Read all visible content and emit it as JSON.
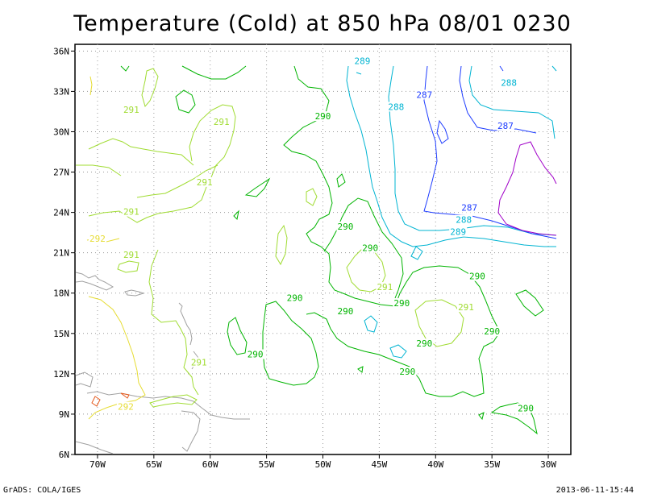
{
  "title": "Temperature (Cold) at 850 hPa 08/01 0230",
  "footer": {
    "left": "GrADS: COLA/IGES",
    "right": "2013-06-11-15:44"
  },
  "map": {
    "lon_range": [
      -72,
      -28
    ],
    "lat_range": [
      6,
      36.5
    ],
    "x_ticks": [
      "70W",
      "65W",
      "60W",
      "55W",
      "50W",
      "45W",
      "40W",
      "35W",
      "30W"
    ],
    "y_ticks": [
      "36N",
      "33N",
      "30N",
      "27N",
      "24N",
      "21N",
      "18N",
      "15N",
      "12N",
      "9N",
      "6N"
    ],
    "grid": true
  },
  "contour_labels": [
    {
      "text": "289",
      "lon": -46.5,
      "lat": 35.2,
      "color": "#00b4d2"
    },
    {
      "text": "288",
      "lon": -33.5,
      "lat": 33.6,
      "color": "#00b4d2"
    },
    {
      "text": "287",
      "lon": -41,
      "lat": 32.7,
      "color": "#1e3cff"
    },
    {
      "text": "288",
      "lon": -43.5,
      "lat": 31.8,
      "color": "#00b4d2"
    },
    {
      "text": "287",
      "lon": -33.8,
      "lat": 30.4,
      "color": "#1e3cff"
    },
    {
      "text": "291",
      "lon": -67,
      "lat": 31.6,
      "color": "#a0dc32"
    },
    {
      "text": "291",
      "lon": -59,
      "lat": 30.7,
      "color": "#a0dc32"
    },
    {
      "text": "290",
      "lon": -50,
      "lat": 31.1,
      "color": "#00b400"
    },
    {
      "text": "291",
      "lon": -60.5,
      "lat": 26.2,
      "color": "#a0dc32"
    },
    {
      "text": "291",
      "lon": -67,
      "lat": 24,
      "color": "#a0dc32"
    },
    {
      "text": "287",
      "lon": -37,
      "lat": 24.3,
      "color": "#1e3cff"
    },
    {
      "text": "288",
      "lon": -37.5,
      "lat": 23.4,
      "color": "#00b4d2"
    },
    {
      "text": "289",
      "lon": -38,
      "lat": 22.5,
      "color": "#00b4d2"
    },
    {
      "text": "290",
      "lon": -48,
      "lat": 22.9,
      "color": "#00b400"
    },
    {
      "text": "292",
      "lon": -70,
      "lat": 22,
      "color": "#e6dc32"
    },
    {
      "text": "290",
      "lon": -45.8,
      "lat": 21.3,
      "color": "#00b400"
    },
    {
      "text": "291",
      "lon": -67,
      "lat": 20.8,
      "color": "#a0dc32"
    },
    {
      "text": "290",
      "lon": -36.3,
      "lat": 19.2,
      "color": "#00b400"
    },
    {
      "text": "291",
      "lon": -44.5,
      "lat": 18.4,
      "color": "#a0dc32"
    },
    {
      "text": "290",
      "lon": -52.5,
      "lat": 17.6,
      "color": "#00b400"
    },
    {
      "text": "290",
      "lon": -43,
      "lat": 17.2,
      "color": "#00b400"
    },
    {
      "text": "291",
      "lon": -37.3,
      "lat": 16.9,
      "color": "#a0dc32"
    },
    {
      "text": "290",
      "lon": -48,
      "lat": 16.6,
      "color": "#00b400"
    },
    {
      "text": "290",
      "lon": -35,
      "lat": 15.1,
      "color": "#00b400"
    },
    {
      "text": "290",
      "lon": -41,
      "lat": 14.2,
      "color": "#00b400"
    },
    {
      "text": "290",
      "lon": -56,
      "lat": 13.4,
      "color": "#00b400"
    },
    {
      "text": "291",
      "lon": -61,
      "lat": 12.8,
      "color": "#a0dc32"
    },
    {
      "text": "290",
      "lon": -42.5,
      "lat": 12.1,
      "color": "#00b400"
    },
    {
      "text": "292",
      "lon": -67.5,
      "lat": 9.5,
      "color": "#e6dc32"
    },
    {
      "text": "290",
      "lon": -32,
      "lat": 9.4,
      "color": "#00b400"
    }
  ],
  "colors": {
    "c287": "#1e3cff",
    "c288": "#00b4d2",
    "c290": "#00b400",
    "c291": "#a0dc32",
    "c292": "#e6dc32",
    "c286": "#a000c8",
    "coast": "#a0a0a0"
  }
}
